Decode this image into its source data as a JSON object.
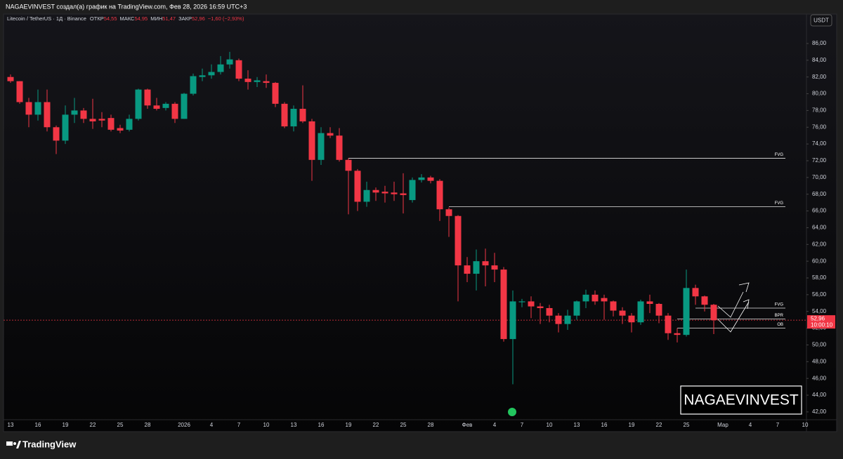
{
  "header": {
    "text": "NAGAEVINVEST создал(а) график на TradingView.com, Фев 28, 2026 16:59 UTC+3"
  },
  "legend": {
    "symbol": "Litecoin / TetherUS · 1Д · Binance",
    "items": [
      {
        "label": "ОТКР",
        "value": "54,55"
      },
      {
        "label": "МАКС",
        "value": "54,95"
      },
      {
        "label": "МИН",
        "value": "51,47"
      },
      {
        "label": "ЗАКР",
        "value": "52,96"
      }
    ],
    "change": "−1,60 (−2,93%)"
  },
  "currency": "USDT",
  "watermark": "NAGAEVINVEST",
  "footer": "TradingView",
  "chart_data": {
    "type": "candlestick",
    "categories": [
      "13",
      null,
      null,
      "16",
      null,
      null,
      "19",
      null,
      null,
      "22",
      null,
      null,
      "25",
      null,
      null,
      "28",
      null,
      null,
      null,
      "2026",
      null,
      null,
      "4",
      null,
      null,
      "7",
      null,
      null,
      "10",
      null,
      null,
      "13",
      null,
      null,
      "16",
      null,
      null,
      "19",
      null,
      null,
      "22",
      null,
      null,
      "25",
      null,
      null,
      "28",
      null,
      null,
      null,
      "Фев",
      null,
      null,
      "4",
      null,
      null,
      "7",
      null,
      null,
      "10",
      null,
      null,
      "13",
      null,
      null,
      "16",
      null,
      null,
      "19",
      null,
      null,
      "22",
      null,
      null,
      "25",
      null,
      null,
      null,
      "Мар",
      null,
      null,
      "4",
      null,
      null,
      "7",
      null,
      null,
      "10"
    ],
    "open": [
      82.0,
      81.5,
      79.0,
      77.5,
      79.0,
      76.0,
      74.4,
      77.5,
      78.0,
      77.0,
      77.0,
      77.1,
      75.9,
      75.7,
      77.0,
      80.5,
      78.6,
      78.3,
      78.8,
      77.0,
      80.0,
      82.0,
      82.2,
      82.6,
      83.5,
      84.0,
      81.8,
      81.4,
      81.5,
      81.3,
      78.8,
      76.1,
      78.2,
      76.7,
      72.1,
      75.3,
      75.0,
      72.1,
      70.8,
      67.1,
      68.5,
      68.3,
      68.2,
      68.1,
      67.3,
      69.7,
      70.0,
      69.6,
      66.2,
      65.4,
      59.5,
      58.5,
      60.0,
      59.5,
      59.0,
      50.7,
      55.1,
      55.2,
      54.6,
      54.4,
      53.5,
      52.5,
      53.5,
      55.2,
      56.0,
      55.6,
      55.2,
      54.1,
      53.5,
      52.7,
      55.2,
      54.9,
      53.5,
      51.4,
      51.2,
      56.8,
      55.8,
      54.8,
      null,
      null,
      null,
      null,
      null,
      null,
      null,
      null,
      null,
      null
    ],
    "high": [
      82.3,
      81.5,
      79.5,
      80.5,
      80.5,
      76.2,
      78.6,
      79.5,
      78.3,
      79.4,
      77.8,
      77.5,
      76.3,
      77.5,
      80.6,
      80.6,
      79.5,
      79.0,
      79.0,
      80.1,
      82.4,
      83.0,
      83.5,
      84.5,
      85.0,
      84.2,
      82.8,
      82.0,
      82.3,
      81.4,
      79.0,
      78.6,
      81.0,
      77.0,
      76.0,
      76.0,
      75.9,
      72.3,
      71.0,
      69.5,
      68.8,
      69.0,
      69.5,
      70.5,
      70.0,
      70.4,
      70.2,
      69.8,
      66.4,
      65.5,
      60.5,
      61.4,
      61.5,
      61.0,
      59.3,
      56.5,
      55.5,
      55.8,
      55.0,
      54.8,
      53.8,
      54.2,
      55.3,
      56.6,
      56.5,
      56.0,
      55.3,
      54.5,
      53.8,
      55.4,
      56.0,
      55.0,
      53.8,
      52.0,
      59.0,
      57.2,
      55.9,
      54.9,
      null,
      null,
      null,
      null,
      null,
      null,
      null,
      null,
      null,
      null
    ],
    "low": [
      81.3,
      78.8,
      76.0,
      76.8,
      75.5,
      72.8,
      74.0,
      76.5,
      76.5,
      75.8,
      76.0,
      75.5,
      75.3,
      75.5,
      76.8,
      78.2,
      78.0,
      78.0,
      76.5,
      77.0,
      79.8,
      81.5,
      81.8,
      82.3,
      83.0,
      81.5,
      80.5,
      80.8,
      80.7,
      78.4,
      75.9,
      75.5,
      76.5,
      69.6,
      71.5,
      74.7,
      71.9,
      65.6,
      66.0,
      66.5,
      67.2,
      67.0,
      67.2,
      65.7,
      67.0,
      69.4,
      69.3,
      64.8,
      62.9,
      55.2,
      57.5,
      56.5,
      57.0,
      57.5,
      50.4,
      45.3,
      54.5,
      53.2,
      52.5,
      52.7,
      51.5,
      51.8,
      53.0,
      54.4,
      54.8,
      53.0,
      53.4,
      52.5,
      51.5,
      52.4,
      53.8,
      52.6,
      50.6,
      50.3,
      51.0,
      54.8,
      54.0,
      51.3,
      null,
      null,
      null,
      null,
      null,
      null,
      null,
      null,
      null,
      null
    ],
    "close": [
      81.5,
      79.0,
      77.5,
      79.0,
      76.0,
      74.4,
      77.5,
      78.0,
      77.0,
      76.7,
      76.8,
      75.7,
      75.6,
      77.0,
      80.5,
      78.6,
      78.2,
      78.8,
      77.0,
      80.0,
      82.1,
      82.2,
      82.6,
      83.5,
      84.1,
      81.8,
      81.4,
      81.6,
      81.3,
      78.8,
      76.1,
      78.2,
      76.7,
      72.1,
      75.3,
      75.0,
      72.1,
      70.8,
      67.1,
      68.5,
      68.2,
      68.1,
      68.0,
      67.9,
      69.7,
      70.0,
      69.6,
      66.2,
      65.4,
      59.5,
      58.5,
      60.0,
      59.5,
      59.0,
      50.7,
      55.2,
      55.2,
      54.6,
      54.4,
      53.5,
      52.5,
      53.5,
      55.2,
      56.0,
      55.2,
      55.2,
      54.1,
      53.5,
      52.7,
      55.2,
      54.9,
      53.5,
      51.4,
      51.2,
      56.8,
      55.8,
      54.8,
      52.96,
      null,
      null,
      null,
      null,
      null,
      null,
      null,
      null,
      null,
      null
    ],
    "up_color": "#089981",
    "down_color": "#f23645",
    "last_price": 52.96,
    "last_price_label": "52,96",
    "countdown": "10:00:10",
    "levels": [
      {
        "label": "FVG",
        "value": 72.3,
        "start": 37
      },
      {
        "label": "FVG",
        "value": 66.5,
        "start": 48
      },
      {
        "label": "FVG",
        "value": 54.4,
        "start": 75
      },
      {
        "label": "BPR",
        "value": 53.1,
        "start": 73
      },
      {
        "label": "OB",
        "value": 52.0,
        "start": 73
      }
    ],
    "ylim": [
      41.07,
      88.68
    ],
    "yticks": [
      {
        "value": 42,
        "label": "42,00"
      },
      {
        "value": 44,
        "label": "44,00"
      },
      {
        "value": 46,
        "label": "46,00"
      },
      {
        "value": 48,
        "label": "48,00"
      },
      {
        "value": 50,
        "label": "50,00"
      },
      {
        "value": 52,
        "label": "52,00"
      },
      {
        "value": 54,
        "label": "54,00"
      },
      {
        "value": 56,
        "label": "56,00"
      },
      {
        "value": 58,
        "label": "58,00"
      },
      {
        "value": 60,
        "label": "60,00"
      },
      {
        "value": 62,
        "label": "62,00"
      },
      {
        "value": 64,
        "label": "64,00"
      },
      {
        "value": 66,
        "label": "66,00"
      },
      {
        "value": 68,
        "label": "68,00"
      },
      {
        "value": 70,
        "label": "70,00"
      },
      {
        "value": 72,
        "label": "72,00"
      },
      {
        "value": 74,
        "label": "74,00"
      },
      {
        "value": 76,
        "label": "76,00"
      },
      {
        "value": 78,
        "label": "78,00"
      },
      {
        "value": 80,
        "label": "80,00"
      },
      {
        "value": 82,
        "label": "82,00"
      },
      {
        "value": 84,
        "label": "84,00"
      },
      {
        "value": 86,
        "label": "86,00"
      }
    ]
  }
}
